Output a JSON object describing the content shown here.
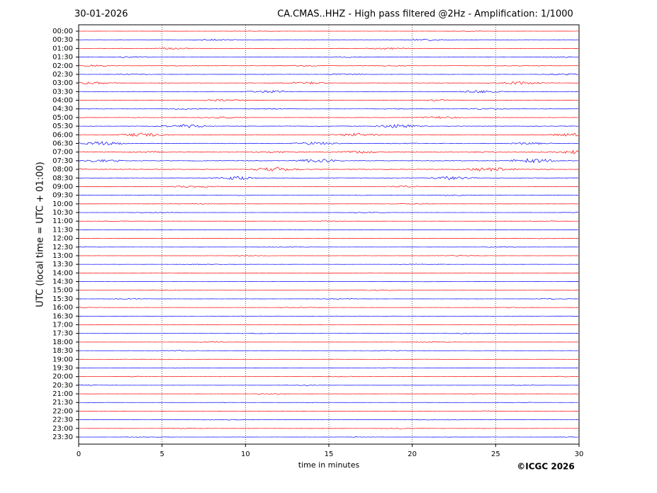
{
  "chart_data": {
    "type": "helicorder",
    "date": "30-01-2026",
    "title": "CA.CMAS..HHZ - High pass filtered @2Hz - Amplification: 1/1000",
    "ylabel": "UTC (local time = UTC + 01:00)",
    "xlabel": "time in minutes",
    "copyright": "©ICGC 2026",
    "categories": [
      "00:00",
      "00:30",
      "01:00",
      "01:30",
      "02:00",
      "02:30",
      "03:00",
      "03:30",
      "04:00",
      "04:30",
      "05:00",
      "05:30",
      "06:00",
      "06:30",
      "07:00",
      "07:30",
      "08:00",
      "08:30",
      "09:00",
      "09:30",
      "10:00",
      "10:30",
      "11:00",
      "11:30",
      "12:00",
      "12:30",
      "13:00",
      "13:30",
      "14:00",
      "14:30",
      "15:00",
      "15:30",
      "16:00",
      "16:30",
      "17:00",
      "17:30",
      "18:00",
      "18:30",
      "19:00",
      "19:30",
      "20:00",
      "20:30",
      "21:00",
      "21:30",
      "22:00",
      "22:30",
      "23:00",
      "23:30"
    ],
    "values": [
      1,
      2,
      2,
      2,
      3,
      2,
      3,
      3,
      3,
      3,
      3,
      4,
      4,
      5,
      6,
      5,
      5,
      4,
      3,
      2,
      1,
      1,
      1,
      1,
      1,
      1,
      1,
      1,
      1,
      1,
      1,
      1,
      1,
      1,
      1,
      1,
      1,
      1,
      1,
      1,
      1,
      1,
      1,
      1,
      1,
      1,
      1,
      1
    ],
    "colors": [
      "#ff0000",
      "#0000ff"
    ],
    "xlim": [
      0,
      30
    ],
    "xticks": [
      0,
      5,
      10,
      15,
      20,
      25,
      30
    ],
    "grid": true
  }
}
